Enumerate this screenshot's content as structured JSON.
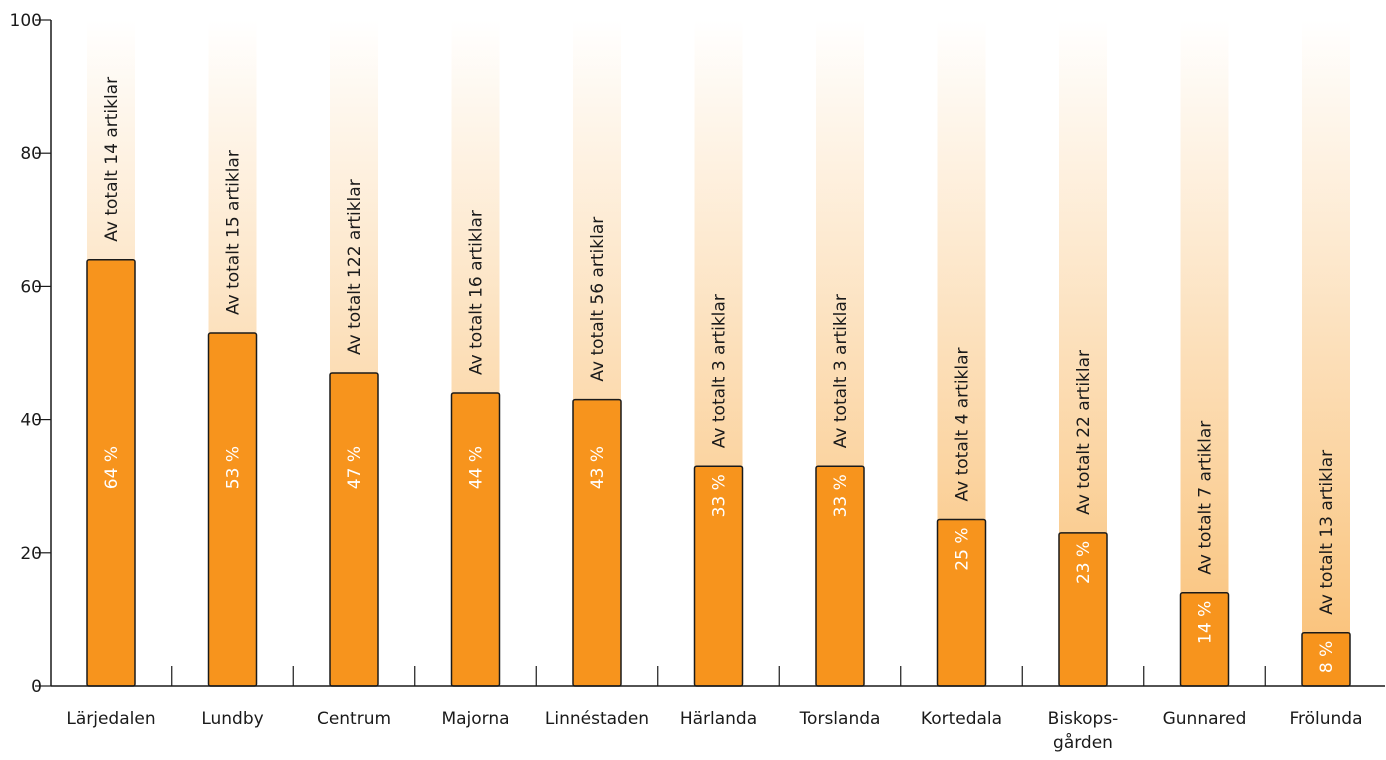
{
  "chart_data": {
    "type": "bar",
    "categories": [
      [
        "Lärjedalen"
      ],
      [
        "Lundby"
      ],
      [
        "Centrum"
      ],
      [
        "Majorna"
      ],
      [
        "Linnéstaden"
      ],
      [
        "Härlanda"
      ],
      [
        "Torslanda"
      ],
      [
        "Kortedala"
      ],
      [
        "Biskops-",
        "gården"
      ],
      [
        "Gunnared"
      ],
      [
        "Frölunda"
      ]
    ],
    "values": [
      64,
      53,
      47,
      44,
      43,
      33,
      33,
      25,
      23,
      14,
      8
    ],
    "value_labels": [
      "64 %",
      "53 %",
      "47 %",
      "44 %",
      "43 %",
      "33 %",
      "33 %",
      "25 %",
      "23 %",
      "14 %",
      "8 %"
    ],
    "annotations": [
      "Av totalt 14 artiklar",
      "Av totalt 15 artiklar",
      "Av totalt 122 artiklar",
      "Av totalt 16 artiklar",
      "Av totalt 56 artiklar",
      "Av totalt 3 artiklar",
      "Av totalt 3 artiklar",
      "Av totalt 4 artiklar",
      "Av totalt 22 artiklar",
      "Av totalt 7 artiklar",
      "Av totalt 13 artiklar"
    ],
    "yticks": [
      0,
      20,
      40,
      60,
      80,
      100
    ],
    "ylim": [
      0,
      100
    ],
    "title": "",
    "xlabel": "",
    "ylabel": "",
    "grid": false,
    "colors": {
      "bar": "#f7941d",
      "bar_outline": "#1a1a1a",
      "background_bar_top": "#ffffff",
      "background_bar_bottom": "#f9bf73",
      "axis": "#1a1a1a"
    }
  }
}
